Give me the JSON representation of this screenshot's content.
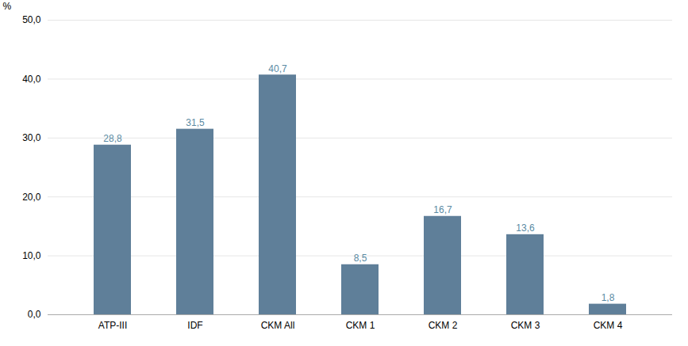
{
  "chart_data": {
    "type": "bar",
    "categories": [
      "ATP-III",
      "IDF",
      "CKM All",
      "CKM 1",
      "CKM 2",
      "CKM 3",
      "CKM 4"
    ],
    "values": [
      28.8,
      31.5,
      40.7,
      8.5,
      16.7,
      13.6,
      1.8
    ],
    "value_labels": [
      "28,8",
      "31,5",
      "40,7",
      "8,5",
      "16,7",
      "13,6",
      "1,8"
    ],
    "data_labels": true,
    "color": "#5f7f99",
    "ylabel": "%",
    "ylim": [
      0,
      50
    ],
    "yticks": [
      {
        "value": 0,
        "label": "0,0"
      },
      {
        "value": 10,
        "label": "10,0"
      },
      {
        "value": 20,
        "label": "20,0"
      },
      {
        "value": 30,
        "label": "30,0"
      },
      {
        "value": 40,
        "label": "40,0"
      },
      {
        "value": 50,
        "label": "50,0"
      }
    ],
    "grid": true
  }
}
